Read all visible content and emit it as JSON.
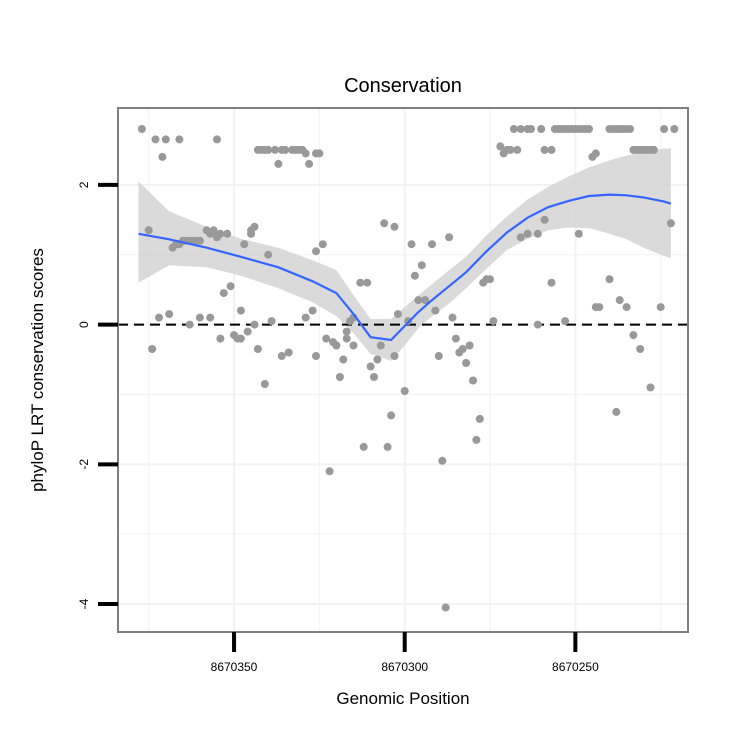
{
  "chart_data": {
    "type": "scatter",
    "title": "Conservation",
    "xlabel": "Genomic Position",
    "ylabel": "phyloP LRT conservation scores",
    "x_reversed": true,
    "xlim": [
      8670384,
      8670217
    ],
    "ylim": [
      -4.4,
      3.1
    ],
    "x_ticks": [
      8670350,
      8670300,
      8670250
    ],
    "y_ticks": [
      2,
      0,
      -2,
      -4
    ],
    "grid": true,
    "reference_line": {
      "y": 0,
      "style": "dashed",
      "color": "#000000"
    },
    "colors": {
      "points": "#999999",
      "smooth": "#3366ff",
      "ribbon": "#d3d3d3",
      "panel_border": "#7f7f7f",
      "grid": "#f2f2f2"
    },
    "points": [
      [
        8670377,
        2.8
      ],
      [
        8670373,
        2.65
      ],
      [
        8670370,
        2.65
      ],
      [
        8670366,
        2.65
      ],
      [
        8670355,
        2.65
      ],
      [
        8670371,
        2.4
      ],
      [
        8670375,
        1.35
      ],
      [
        8670374,
        -0.35
      ],
      [
        8670372,
        0.1
      ],
      [
        8670369,
        0.15
      ],
      [
        8670368,
        1.1
      ],
      [
        8670367,
        1.15
      ],
      [
        8670366,
        1.15
      ],
      [
        8670365,
        1.2
      ],
      [
        8670364,
        1.2
      ],
      [
        8670363,
        1.2
      ],
      [
        8670362,
        1.2
      ],
      [
        8670361,
        1.2
      ],
      [
        8670360,
        1.2
      ],
      [
        8670358,
        1.35
      ],
      [
        8670357,
        1.3
      ],
      [
        8670356,
        1.35
      ],
      [
        8670354,
        1.3
      ],
      [
        8670352,
        1.3
      ],
      [
        8670347,
        1.15
      ],
      [
        8670345,
        1.35
      ],
      [
        8670344,
        1.4
      ],
      [
        8670340,
        1.0
      ],
      [
        8670363,
        0.0
      ],
      [
        8670360,
        0.1
      ],
      [
        8670357,
        0.1
      ],
      [
        8670354,
        -0.2
      ],
      [
        8670353,
        0.45
      ],
      [
        8670351,
        0.55
      ],
      [
        8670350,
        -0.15
      ],
      [
        8670349,
        -0.2
      ],
      [
        8670348,
        -0.2
      ],
      [
        8670348,
        0.2
      ],
      [
        8670346,
        -0.1
      ],
      [
        8670344,
        0.0
      ],
      [
        8670343,
        -0.35
      ],
      [
        8670341,
        -0.85
      ],
      [
        8670339,
        0.05
      ],
      [
        8670336,
        -0.45
      ],
      [
        8670334,
        -0.4
      ],
      [
        8670343,
        2.5
      ],
      [
        8670342,
        2.5
      ],
      [
        8670341,
        2.5
      ],
      [
        8670340,
        2.5
      ],
      [
        8670338,
        2.5
      ],
      [
        8670336,
        2.5
      ],
      [
        8670335,
        2.5
      ],
      [
        8670333,
        2.5
      ],
      [
        8670332,
        2.5
      ],
      [
        8670331,
        2.5
      ],
      [
        8670330,
        2.5
      ],
      [
        8670329,
        2.45
      ],
      [
        8670326,
        2.45
      ],
      [
        8670325,
        2.45
      ],
      [
        8670337,
        2.3
      ],
      [
        8670328,
        2.3
      ],
      [
        8670326,
        1.05
      ],
      [
        8670324,
        1.15
      ],
      [
        8670326,
        -0.45
      ],
      [
        8670323,
        -0.2
      ],
      [
        8670321,
        -0.25
      ],
      [
        8670320,
        -0.3
      ],
      [
        8670319,
        -0.75
      ],
      [
        8670318,
        -0.5
      ],
      [
        8670317,
        -0.2
      ],
      [
        8670315,
        -0.3
      ],
      [
        8670322,
        -2.1
      ],
      [
        8670317,
        -0.1
      ],
      [
        8670316,
        0.05
      ],
      [
        8670315,
        0.1
      ],
      [
        8670313,
        0.6
      ],
      [
        8670311,
        0.6
      ],
      [
        8670310,
        -0.6
      ],
      [
        8670309,
        -0.75
      ],
      [
        8670308,
        -0.5
      ],
      [
        8670312,
        -1.75
      ],
      [
        8670307,
        -0.3
      ],
      [
        8670306,
        1.45
      ],
      [
        8670305,
        -1.75
      ],
      [
        8670304,
        -1.3
      ],
      [
        8670303,
        -0.45
      ],
      [
        8670303,
        1.4
      ],
      [
        8670302,
        0.15
      ],
      [
        8670300,
        -0.95
      ],
      [
        8670299,
        0.05
      ],
      [
        8670298,
        1.15
      ],
      [
        8670297,
        0.7
      ],
      [
        8670296,
        0.35
      ],
      [
        8670295,
        0.85
      ],
      [
        8670294,
        0.35
      ],
      [
        8670292,
        1.15
      ],
      [
        8670291,
        0.2
      ],
      [
        8670290,
        -0.45
      ],
      [
        8670289,
        -1.95
      ],
      [
        8670287,
        1.25
      ],
      [
        8670286,
        0.1
      ],
      [
        8670285,
        -0.2
      ],
      [
        8670284,
        -0.4
      ],
      [
        8670283,
        -0.35
      ],
      [
        8670282,
        -0.55
      ],
      [
        8670281,
        -0.3
      ],
      [
        8670280,
        -0.8
      ],
      [
        8670279,
        -1.65
      ],
      [
        8670278,
        -1.35
      ],
      [
        8670277,
        0.6
      ],
      [
        8670276,
        0.65
      ],
      [
        8670275,
        0.65
      ],
      [
        8670274,
        0.05
      ],
      [
        8670288,
        -4.05
      ],
      [
        8670272,
        2.55
      ],
      [
        8670271,
        2.45
      ],
      [
        8670270,
        2.5
      ],
      [
        8670269,
        2.5
      ],
      [
        8670268,
        2.8
      ],
      [
        8670267,
        2.5
      ],
      [
        8670266,
        2.8
      ],
      [
        8670264,
        2.8
      ],
      [
        8670263,
        2.8
      ],
      [
        8670261,
        0.0
      ],
      [
        8670260,
        2.8
      ],
      [
        8670259,
        2.5
      ],
      [
        8670259,
        1.5
      ],
      [
        8670257,
        2.5
      ],
      [
        8670256,
        2.8
      ],
      [
        8670255,
        2.8
      ],
      [
        8670254,
        2.8
      ],
      [
        8670253,
        2.8
      ],
      [
        8670252,
        2.8
      ],
      [
        8670251,
        2.8
      ],
      [
        8670250,
        2.8
      ],
      [
        8670249,
        2.8
      ],
      [
        8670248,
        2.8
      ],
      [
        8670247,
        2.8
      ],
      [
        8670246,
        2.8
      ],
      [
        8670253,
        0.05
      ],
      [
        8670245,
        2.4
      ],
      [
        8670244,
        2.45
      ],
      [
        8670244,
        0.25
      ],
      [
        8670240,
        2.8
      ],
      [
        8670239,
        2.8
      ],
      [
        8670238,
        2.8
      ],
      [
        8670237,
        2.8
      ],
      [
        8670236,
        2.8
      ],
      [
        8670235,
        2.8
      ],
      [
        8670234,
        2.8
      ],
      [
        8670233,
        2.5
      ],
      [
        8670232,
        2.5
      ],
      [
        8670231,
        2.5
      ],
      [
        8670230,
        2.5
      ],
      [
        8670229,
        2.5
      ],
      [
        8670228,
        2.5
      ],
      [
        8670227,
        2.5
      ],
      [
        8670224,
        2.8
      ],
      [
        8670221,
        2.8
      ],
      [
        8670266,
        1.25
      ],
      [
        8670264,
        1.3
      ],
      [
        8670261,
        1.3
      ],
      [
        8670257,
        0.6
      ],
      [
        8670249,
        1.3
      ],
      [
        8670243,
        0.25
      ],
      [
        8670240,
        0.65
      ],
      [
        8670238,
        -1.25
      ],
      [
        8670237,
        0.35
      ],
      [
        8670235,
        0.25
      ],
      [
        8670233,
        -0.15
      ],
      [
        8670231,
        -0.35
      ],
      [
        8670228,
        -0.9
      ],
      [
        8670225,
        0.25
      ],
      [
        8670222,
        1.45
      ],
      [
        8670327,
        0.2
      ],
      [
        8670329,
        0.1
      ],
      [
        8670345,
        1.3
      ],
      [
        8670355,
        1.25
      ]
    ],
    "smooth": {
      "x": [
        8670378,
        8670369,
        8670358,
        8670348,
        8670337,
        8670327,
        8670320,
        8670315,
        8670310,
        8670304,
        8670300,
        8670296,
        8670292,
        8670287,
        8670282,
        8670276,
        8670270,
        8670264,
        8670258,
        8670252,
        8670246,
        8670240,
        8670235,
        8670230,
        8670224,
        8670222
      ],
      "y": [
        1.3,
        1.22,
        1.1,
        0.97,
        0.82,
        0.62,
        0.45,
        0.15,
        -0.18,
        -0.22,
        -0.02,
        0.18,
        0.35,
        0.55,
        0.75,
        1.05,
        1.32,
        1.53,
        1.68,
        1.77,
        1.84,
        1.86,
        1.85,
        1.82,
        1.76,
        1.73
      ],
      "lower": [
        0.6,
        0.85,
        0.82,
        0.7,
        0.52,
        0.32,
        0.12,
        -0.12,
        -0.42,
        -0.52,
        -0.3,
        -0.05,
        0.12,
        0.3,
        0.52,
        0.8,
        1.07,
        1.23,
        1.35,
        1.39,
        1.38,
        1.3,
        1.22,
        1.1,
        0.98,
        0.95
      ],
      "upper": [
        2.05,
        1.62,
        1.4,
        1.23,
        1.1,
        0.92,
        0.78,
        0.42,
        0.08,
        0.08,
        0.25,
        0.42,
        0.58,
        0.78,
        0.97,
        1.28,
        1.55,
        1.79,
        1.97,
        2.12,
        2.25,
        2.35,
        2.42,
        2.47,
        2.52,
        2.52
      ]
    }
  }
}
